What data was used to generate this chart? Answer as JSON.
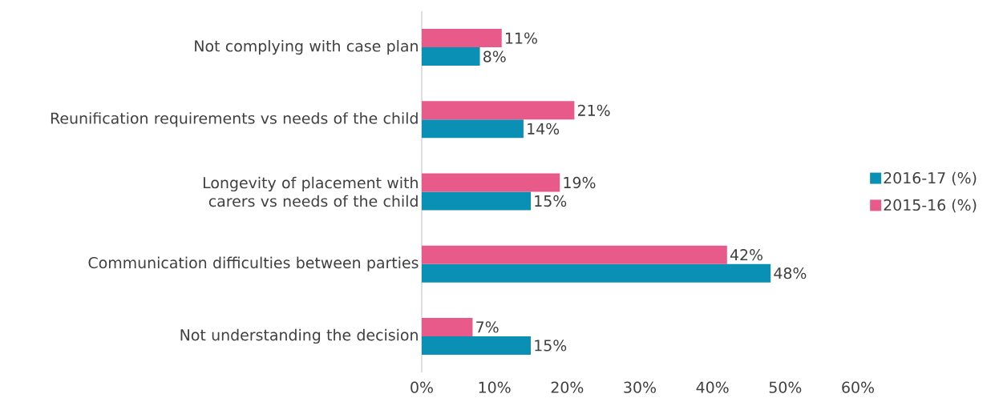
{
  "chart_data": {
    "type": "bar",
    "orientation": "horizontal",
    "categories": [
      "Not complying with case plan",
      "Reunification requirements vs needs of the child",
      "Longevity of placement with carers vs needs of the child",
      "Communication difficulties between parties",
      "Not understanding the decision"
    ],
    "series": [
      {
        "name": "2016-17 (%)",
        "color": "#0a8fb5",
        "values": [
          8,
          14,
          15,
          48,
          15
        ],
        "value_labels": [
          "8%",
          "14%",
          "15%",
          "48%",
          "15%"
        ]
      },
      {
        "name": "2015-16 (%)",
        "color": "#e75a8a",
        "values": [
          11,
          21,
          19,
          42,
          7
        ],
        "value_labels": [
          "11%",
          "21%",
          "19%",
          "42%",
          "7%"
        ]
      }
    ],
    "xlim": [
      0,
      60
    ],
    "xticks": [
      {
        "value": 0,
        "label": "0%"
      },
      {
        "value": 10,
        "label": "10%"
      },
      {
        "value": 20,
        "label": "20%"
      },
      {
        "value": 30,
        "label": "30%"
      },
      {
        "value": 40,
        "label": "40%"
      },
      {
        "value": 50,
        "label": "50%"
      },
      {
        "value": 60,
        "label": "60%"
      }
    ],
    "grid": false,
    "legend": "right"
  }
}
